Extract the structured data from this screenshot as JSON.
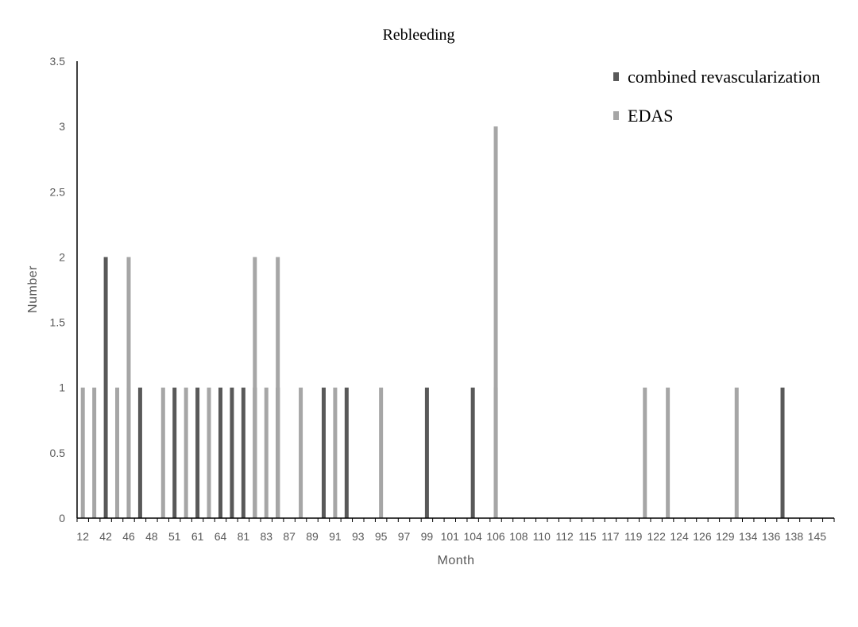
{
  "chart_data": {
    "type": "bar",
    "title": "Rebleeding",
    "xlabel": "Month",
    "ylabel": "Number",
    "ylim": [
      0,
      3.5
    ],
    "yticks": [
      "0",
      "0.5",
      "1",
      "1.5",
      "2",
      "2.5",
      "3",
      "3.5"
    ],
    "categories": [
      "12",
      "42",
      "46",
      "48",
      "51",
      "61",
      "64",
      "81",
      "83",
      "87",
      "89",
      "91",
      "93",
      "95",
      "97",
      "99",
      "101",
      "104",
      "106",
      "108",
      "110",
      "112",
      "115",
      "117",
      "119",
      "122",
      "124",
      "126",
      "129",
      "134",
      "136",
      "138",
      "145"
    ],
    "series": [
      {
        "name": "combined revascularization",
        "color": "#595959",
        "bars": [
          {
            "x": 2,
            "value": 2
          },
          {
            "x": 4,
            "value": 1
          },
          {
            "x": 5,
            "value": 1
          },
          {
            "x": 8,
            "value": 1
          },
          {
            "x": 10,
            "value": 1
          },
          {
            "x": 12,
            "value": 1
          },
          {
            "x": 13,
            "value": 1
          },
          {
            "x": 14,
            "value": 1
          },
          {
            "x": 15,
            "value": 1
          },
          {
            "x": 17,
            "value": 1
          },
          {
            "x": 21,
            "value": 1
          },
          {
            "x": 23,
            "value": 1
          },
          {
            "x": 30,
            "value": 1
          },
          {
            "x": 34,
            "value": 1
          },
          {
            "x": 36,
            "value": 1
          },
          {
            "x": 61,
            "value": 1
          }
        ]
      },
      {
        "name": "EDAS",
        "color": "#a6a6a6",
        "bars": [
          {
            "x": 0,
            "value": 1
          },
          {
            "x": 1,
            "value": 1
          },
          {
            "x": 3,
            "value": 1
          },
          {
            "x": 4,
            "value": 2
          },
          {
            "x": 7,
            "value": 1
          },
          {
            "x": 9,
            "value": 1
          },
          {
            "x": 11,
            "value": 1
          },
          {
            "x": 15,
            "value": 2
          },
          {
            "x": 16,
            "value": 1
          },
          {
            "x": 17,
            "value": 2
          },
          {
            "x": 19,
            "value": 1
          },
          {
            "x": 22,
            "value": 1
          },
          {
            "x": 26,
            "value": 1
          },
          {
            "x": 36,
            "value": 3
          },
          {
            "x": 49,
            "value": 1
          },
          {
            "x": 51,
            "value": 1
          },
          {
            "x": 57,
            "value": 1
          }
        ]
      }
    ],
    "legend_position": "top-right",
    "grid": false
  }
}
